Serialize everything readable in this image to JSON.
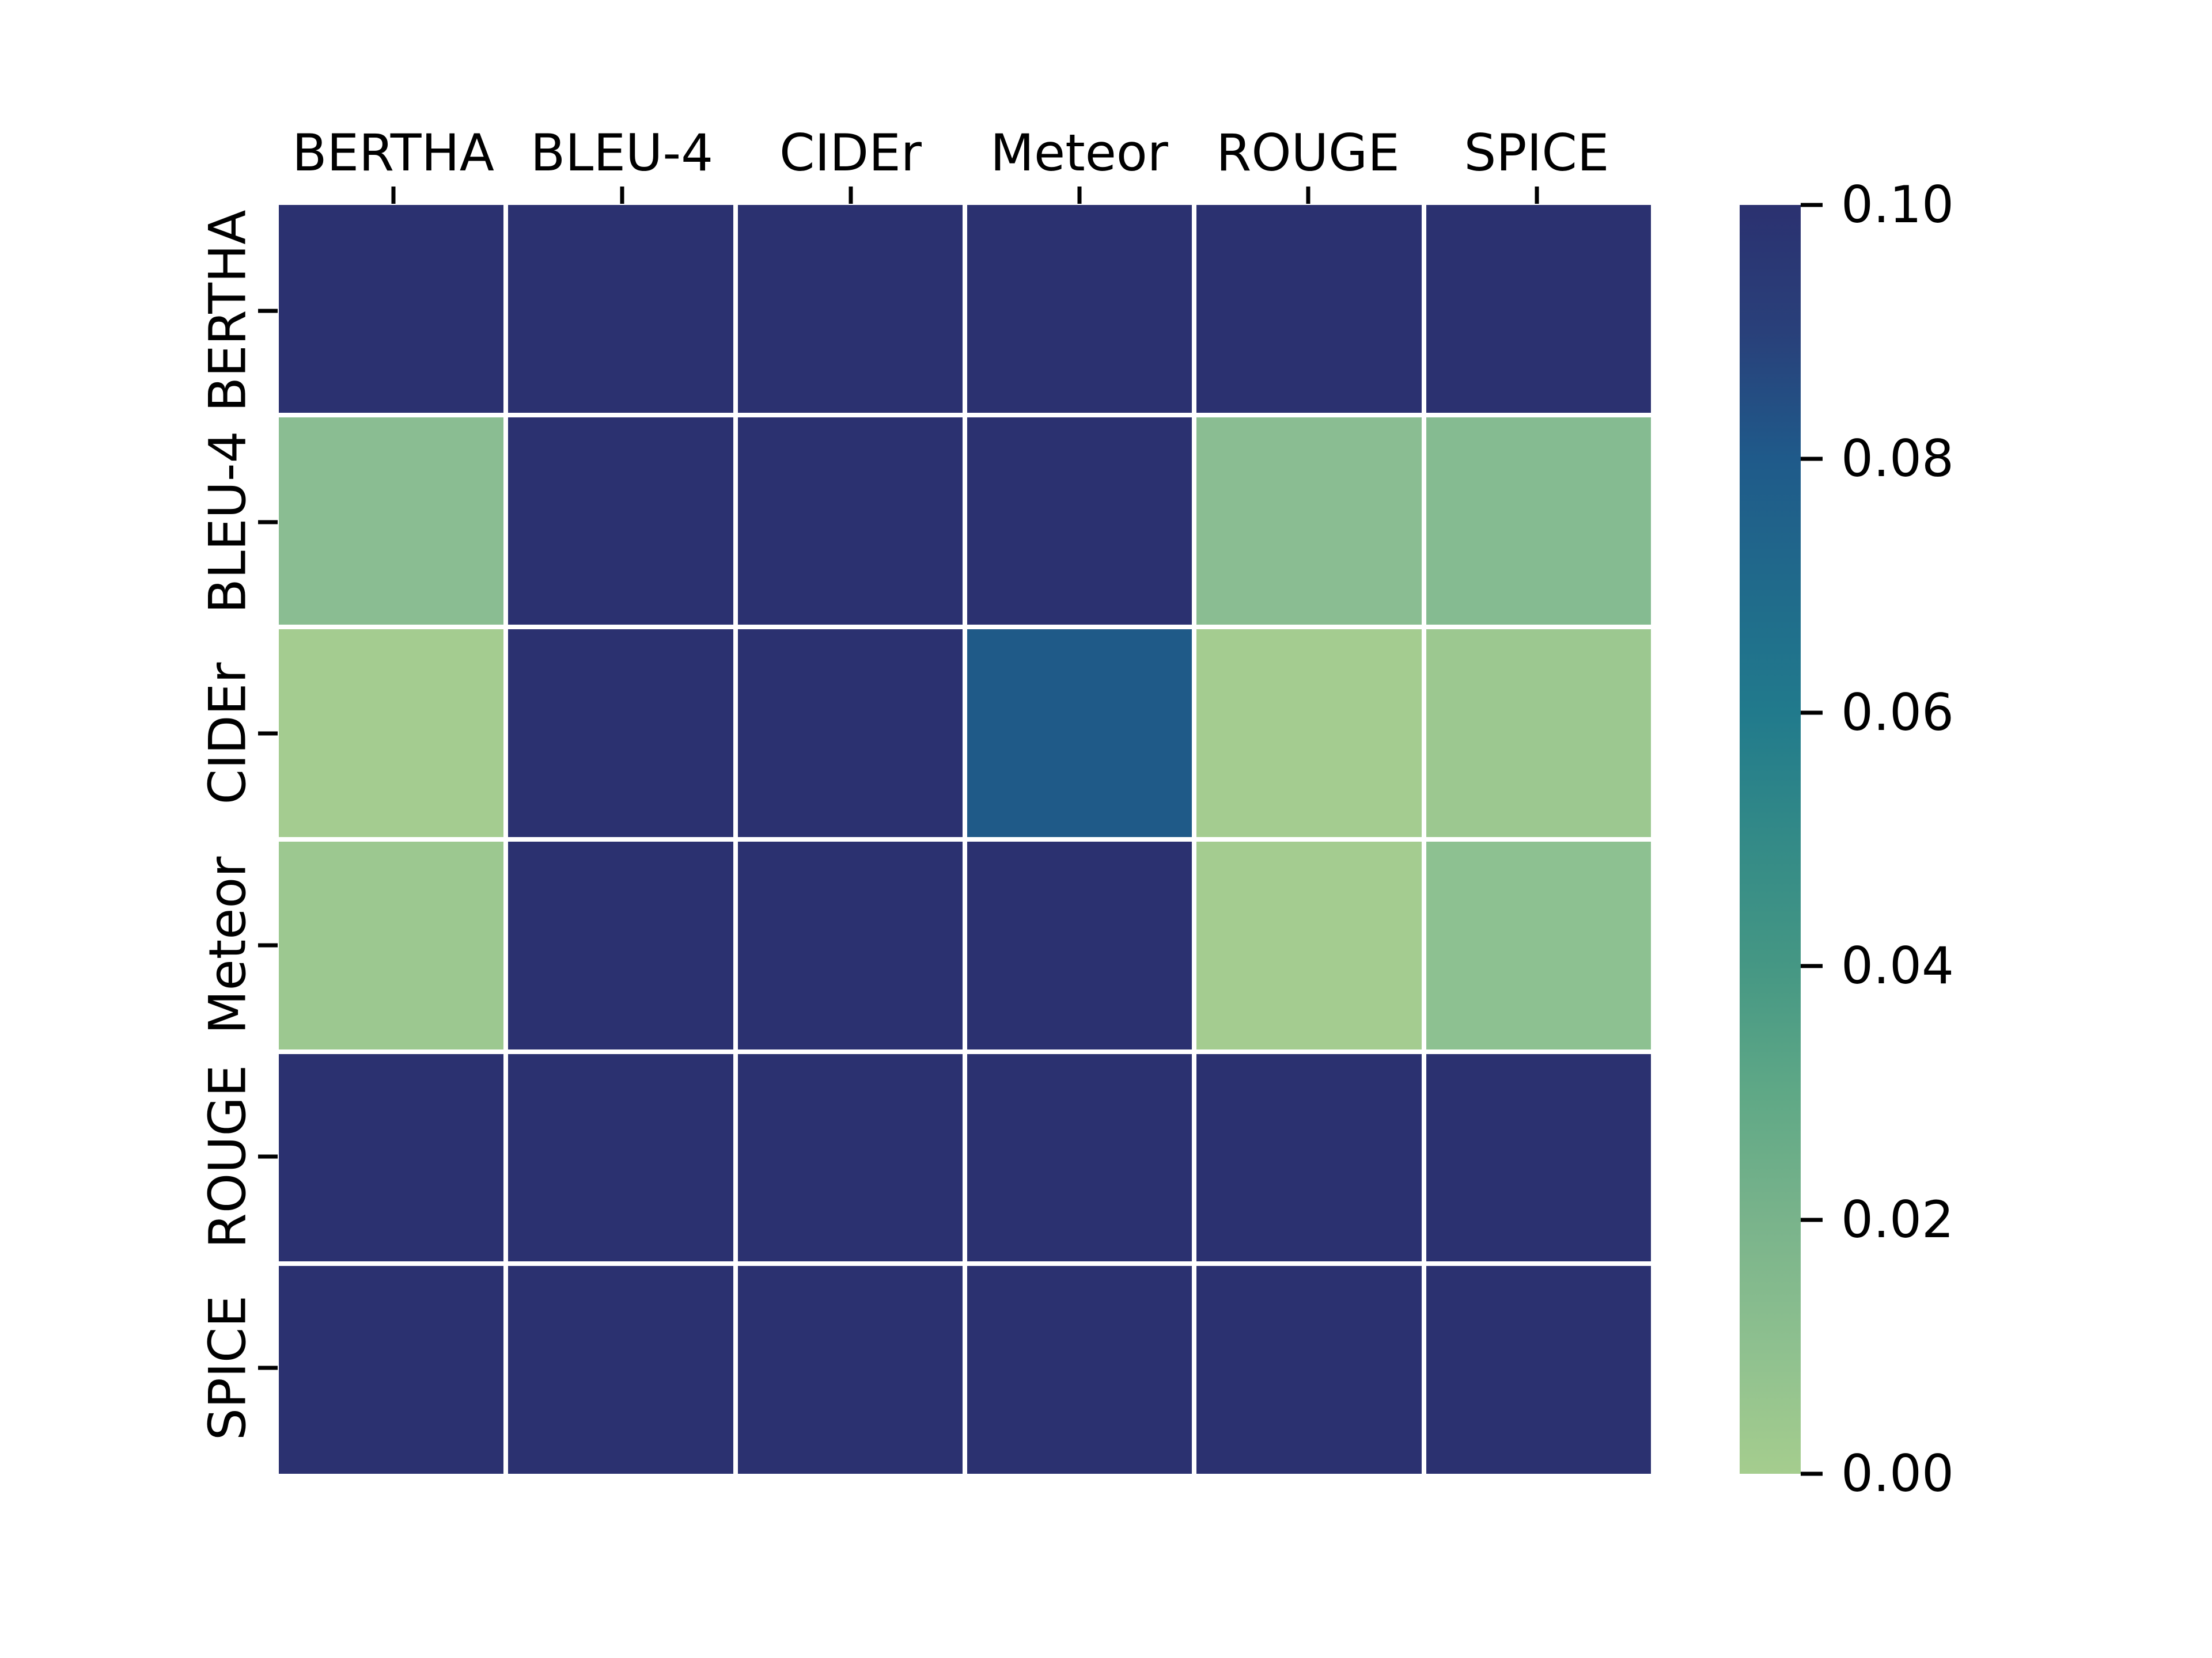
{
  "figure": {
    "background_color": "#ffffff",
    "text_color": "#000000",
    "grid_line_color": "#ffffff"
  },
  "chart_data": {
    "type": "heatmap",
    "title": "",
    "xlabel": "",
    "ylabel": "",
    "x_categories": [
      "BERTHA",
      "BLEU-4",
      "CIDEr",
      "Meteor",
      "ROUGE",
      "SPICE"
    ],
    "y_categories": [
      "BERTHA",
      "BLEU-4",
      "CIDEr",
      "Meteor",
      "ROUGE",
      "SPICE"
    ],
    "colormap": "crest",
    "vmin": 0.0,
    "vmax": 0.1,
    "legend_position": "right-colorbar",
    "grid": "white cell separators",
    "colorbar_ticks": [
      {
        "label": "0.10",
        "value": 0.1
      },
      {
        "label": "0.08",
        "value": 0.08
      },
      {
        "label": "0.06",
        "value": 0.06
      },
      {
        "label": "0.04",
        "value": 0.04
      },
      {
        "label": "0.02",
        "value": 0.02
      },
      {
        "label": "0.00",
        "value": 0.0
      }
    ],
    "colorbar_gradient_bottom_to_top": [
      "#a5cd8e",
      "#8ec08f",
      "#79b38b",
      "#5fa886",
      "#459784",
      "#338a87",
      "#217a8c",
      "#206a8b",
      "#1f5a8a",
      "#29407a",
      "#2b3170"
    ],
    "cell_colors": [
      [
        "#2b3170",
        "#2b3170",
        "#2b3170",
        "#2b3170",
        "#2b3170",
        "#2b3170"
      ],
      [
        "#8abd92",
        "#2b3170",
        "#2b3170",
        "#2b3170",
        "#8abd92",
        "#85bb91"
      ],
      [
        "#a4cc90",
        "#2b3170",
        "#2b3170",
        "#1f5a88",
        "#a4cc90",
        "#9cc890"
      ],
      [
        "#9cc890",
        "#2b3170",
        "#2b3170",
        "#2b3170",
        "#a4cc90",
        "#8dc191"
      ],
      [
        "#2b3170",
        "#2b3170",
        "#2b3170",
        "#2b3170",
        "#2b3170",
        "#2b3170"
      ],
      [
        "#2b3170",
        "#2b3170",
        "#2b3170",
        "#2b3170",
        "#2b3170",
        "#2b3170"
      ]
    ],
    "values_estimated": [
      [
        0.1,
        0.1,
        0.1,
        0.1,
        0.1,
        0.1
      ],
      [
        0.021,
        0.1,
        0.1,
        0.1,
        0.021,
        0.023
      ],
      [
        0.003,
        0.1,
        0.1,
        0.082,
        0.003,
        0.01
      ],
      [
        0.01,
        0.1,
        0.1,
        0.1,
        0.004,
        0.017
      ],
      [
        0.1,
        0.1,
        0.1,
        0.1,
        0.1,
        0.1
      ],
      [
        0.1,
        0.1,
        0.1,
        0.1,
        0.1,
        0.1
      ]
    ]
  }
}
